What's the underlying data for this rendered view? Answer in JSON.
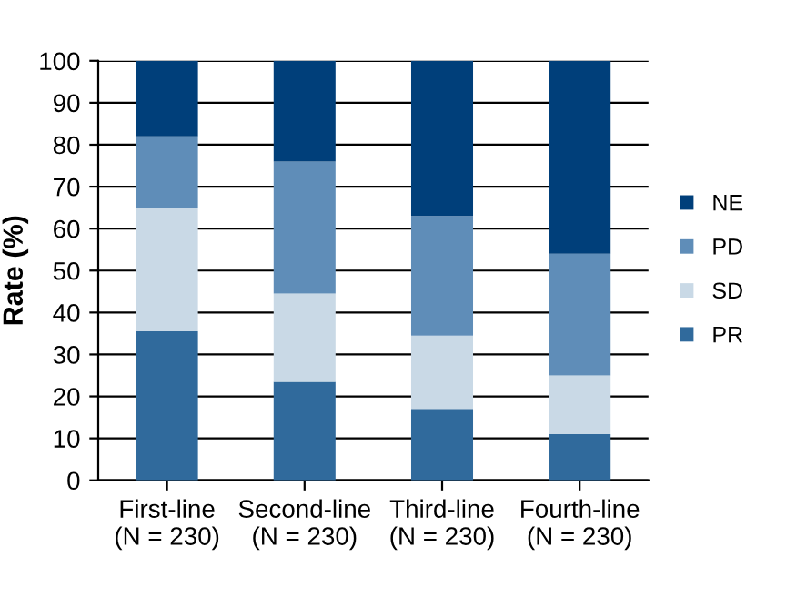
{
  "chart_data": {
    "type": "bar",
    "stacked": true,
    "ylabel": "Rate (%)",
    "categories": [
      "First-line\n(N = 230)",
      "Second-line\n(N = 230)",
      "Third-line\n(N = 230)",
      "Fourth-line\n(N = 230)"
    ],
    "series": [
      {
        "name": "PR",
        "color": "#306a9c",
        "values": [
          35.5,
          23.5,
          17,
          11
        ]
      },
      {
        "name": "SD",
        "color": "#c9d9e6",
        "values": [
          29.5,
          21,
          17.5,
          14
        ]
      },
      {
        "name": "PD",
        "color": "#5f8db8",
        "values": [
          17,
          31.5,
          28.5,
          29
        ]
      },
      {
        "name": "NE",
        "color": "#003f7a",
        "values": [
          18,
          24,
          37,
          46
        ]
      }
    ],
    "ylim": [
      0,
      100
    ],
    "yticks": [
      0,
      10,
      20,
      30,
      40,
      50,
      60,
      70,
      80,
      90,
      100
    ],
    "grid": "y",
    "legend": "right"
  }
}
